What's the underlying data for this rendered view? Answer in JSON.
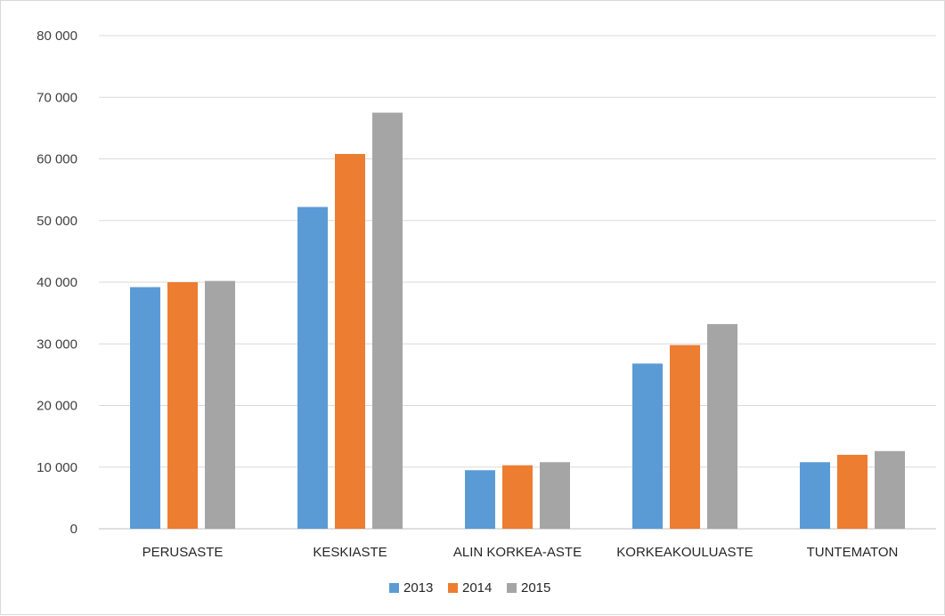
{
  "chart_data": {
    "type": "bar",
    "categories": [
      "PERUSASTE",
      "KESKIASTE",
      "ALIN KORKEA-ASTE",
      "KORKEAKOULUASTE",
      "TUNTEMATON"
    ],
    "series": [
      {
        "name": "2013",
        "color": "#5b9bd5",
        "values": [
          39200,
          52200,
          9500,
          26800,
          10800
        ]
      },
      {
        "name": "2014",
        "color": "#ed7d31",
        "values": [
          40000,
          60800,
          10300,
          29800,
          12000
        ]
      },
      {
        "name": "2015",
        "color": "#a5a5a5",
        "values": [
          40200,
          67500,
          10800,
          33200,
          12600
        ]
      }
    ],
    "yticks": [
      "0",
      "10 000",
      "20 000",
      "30 000",
      "40 000",
      "50 000",
      "60 000",
      "70 000",
      "80 000"
    ],
    "ylim": [
      0,
      80000
    ],
    "grid": true,
    "legend_position": "bottom",
    "title": "",
    "xlabel": "",
    "ylabel": ""
  }
}
